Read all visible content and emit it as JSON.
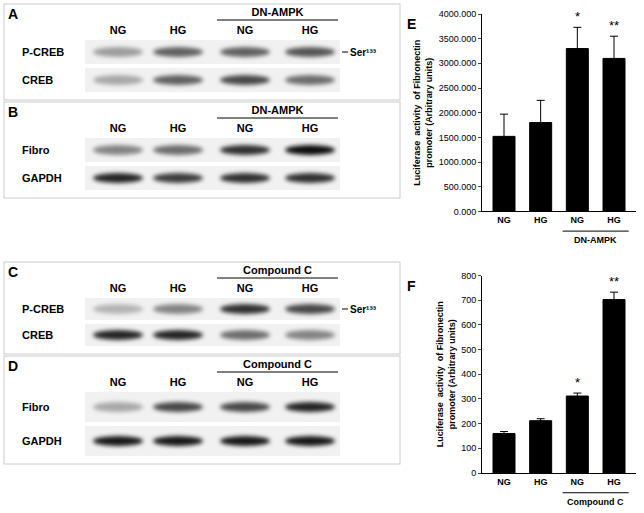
{
  "blots": [
    {
      "panel": "A",
      "lanes": [
        "NG",
        "HG",
        "NG",
        "HG"
      ],
      "treatment": "DN-AMPK",
      "rows": [
        {
          "label": "P-CREB",
          "right_label": "Ser¹³³",
          "intensity": [
            0.35,
            0.6,
            0.6,
            0.65
          ]
        },
        {
          "label": "CREB",
          "intensity": [
            0.3,
            0.6,
            0.7,
            0.55
          ]
        }
      ]
    },
    {
      "panel": "B",
      "lanes": [
        "NG",
        "HG",
        "NG",
        "HG"
      ],
      "treatment": "DN-AMPK",
      "rows": [
        {
          "label": "Fibro",
          "intensity": [
            0.45,
            0.55,
            0.8,
            0.95
          ]
        },
        {
          "label": "GAPDH",
          "intensity": [
            0.85,
            0.75,
            0.8,
            0.8
          ]
        }
      ]
    },
    {
      "panel": "C",
      "lanes": [
        "NG",
        "HG",
        "NG",
        "HG"
      ],
      "treatment": "Compound C",
      "rows": [
        {
          "label": "P-CREB",
          "right_label": "Ser¹³³",
          "intensity": [
            0.25,
            0.45,
            0.8,
            0.7
          ]
        },
        {
          "label": "CREB",
          "intensity": [
            0.85,
            0.85,
            0.55,
            0.45
          ]
        }
      ]
    },
    {
      "panel": "D",
      "lanes": [
        "NG",
        "HG",
        "NG",
        "HG"
      ],
      "treatment": "Compound C",
      "rows": [
        {
          "label": "Fibro",
          "intensity": [
            0.3,
            0.7,
            0.7,
            0.85
          ]
        },
        {
          "label": "GAPDH",
          "intensity": [
            0.9,
            0.9,
            0.9,
            0.9
          ]
        }
      ]
    }
  ],
  "chart_data": [
    {
      "type": "bar",
      "panel": "E",
      "categories": [
        "NG",
        "HG",
        "NG",
        "HG"
      ],
      "values": [
        1520,
        1800,
        3300,
        3100
      ],
      "errors": [
        450,
        450,
        430,
        450
      ],
      "color": "#000000",
      "y_label": "Luciferase  activity  of Fibronectin\npromoter (Arbitrary units)",
      "ylim": [
        0,
        4000
      ],
      "yticks": [
        {
          "value": 0,
          "label": "0.000"
        },
        {
          "value": 500,
          "label": "500.000"
        },
        {
          "value": 1000,
          "label": "1000.000"
        },
        {
          "value": 1500,
          "label": "1500.000"
        },
        {
          "value": 2000,
          "label": "2000.000"
        },
        {
          "value": 2500,
          "label": "2500.000"
        },
        {
          "value": 3000,
          "label": "3000.000"
        },
        {
          "value": 3500,
          "label": "3500.000"
        },
        {
          "value": 4000,
          "label": "4000.000"
        }
      ],
      "grid": false,
      "annotations": [
        {
          "text": "*",
          "index": 2
        },
        {
          "text": "**",
          "index": 3
        }
      ],
      "group": {
        "text": "DN-AMPK",
        "from": 2,
        "to": 3
      }
    },
    {
      "type": "bar",
      "panel": "F",
      "categories": [
        "NG",
        "HG",
        "NG",
        "HG"
      ],
      "values": [
        160,
        212,
        312,
        703
      ],
      "errors": [
        8,
        8,
        12,
        30
      ],
      "color": "#000000",
      "y_label": "Luciferase  activity  of Fibronectin\npromoter (Arbitrary units)",
      "ylim": [
        0,
        800
      ],
      "yticks": [
        0,
        100,
        200,
        300,
        400,
        500,
        600,
        700,
        800
      ],
      "grid": false,
      "annotations": [
        {
          "text": "*",
          "index": 2
        },
        {
          "text": "**",
          "index": 3
        }
      ],
      "group": {
        "text": "Compound C",
        "from": 2,
        "to": 3
      }
    }
  ]
}
